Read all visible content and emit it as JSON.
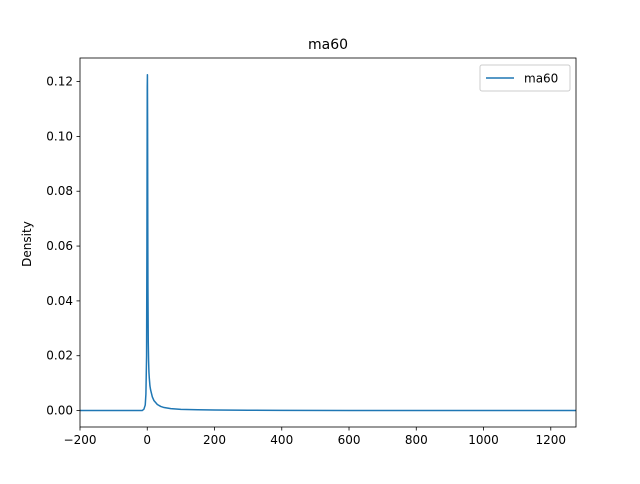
{
  "chart_data": {
    "type": "line",
    "title": "ma60",
    "xlabel": "",
    "ylabel": "Density",
    "xlim": [
      -200,
      1275
    ],
    "ylim": [
      -0.006,
      0.1286
    ],
    "xticks": [
      -200,
      0,
      200,
      400,
      600,
      800,
      1000,
      1200
    ],
    "xtick_labels": [
      "−200",
      "0",
      "200",
      "400",
      "600",
      "800",
      "1000",
      "1200"
    ],
    "yticks": [
      0.0,
      0.02,
      0.04,
      0.06,
      0.08,
      0.1,
      0.12
    ],
    "ytick_labels": [
      "0.00",
      "0.02",
      "0.04",
      "0.06",
      "0.08",
      "0.10",
      "0.12"
    ],
    "grid": false,
    "legend": {
      "position": "top-right",
      "entries": [
        "ma60"
      ]
    },
    "series": [
      {
        "name": "ma60",
        "color": "#1f77b4",
        "x": [
          -200,
          -150,
          -100,
          -50,
          -15,
          -10,
          -6,
          -4,
          -2,
          -1,
          0,
          0.5,
          1,
          1.5,
          2,
          3,
          4,
          5,
          6,
          8,
          10,
          15,
          20,
          30,
          40,
          50,
          70,
          100,
          150,
          200,
          300,
          400,
          600,
          800,
          1000,
          1200,
          1275
        ],
        "y": [
          0.0,
          0.0,
          0.0,
          0.0,
          0.0,
          0.0005,
          0.002,
          0.006,
          0.02,
          0.06,
          0.118,
          0.1225,
          0.105,
          0.07,
          0.045,
          0.025,
          0.018,
          0.014,
          0.012,
          0.009,
          0.0075,
          0.005,
          0.0036,
          0.0022,
          0.0015,
          0.0011,
          0.0007,
          0.00045,
          0.00028,
          0.0002,
          0.00012,
          8e-05,
          4e-05,
          2e-05,
          1e-05,
          5e-06,
          0.0
        ]
      }
    ]
  }
}
